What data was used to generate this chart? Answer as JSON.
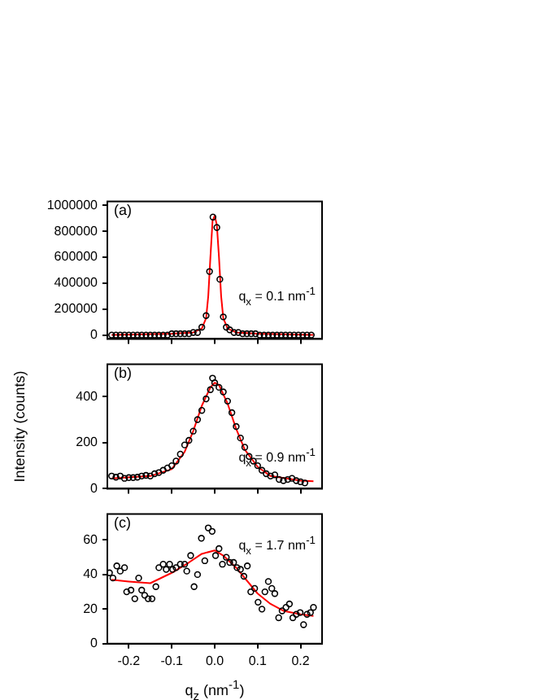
{
  "chart_data": [
    {
      "type": "scatter",
      "annotations": [
        "(a)",
        "q$_{x}$ = 0.1 nm$^{-1}$"
      ],
      "xlim": [
        -0.25,
        0.25
      ],
      "xticks": [
        -0.2,
        -0.1,
        0,
        0.1,
        0.2
      ],
      "ylim": [
        -30000,
        1030000
      ],
      "yticks": [
        0,
        200000,
        400000,
        600000,
        800000,
        1000000
      ],
      "tick_labels": "y",
      "series": [
        {
          "type": "scatter",
          "marker": "circle",
          "color": "#000000",
          "x": [
            -0.24,
            -0.23,
            -0.22,
            -0.21,
            -0.2,
            -0.19,
            -0.18,
            -0.17,
            -0.16,
            -0.15,
            -0.14,
            -0.13,
            -0.12,
            -0.11,
            -0.1,
            -0.09,
            -0.08,
            -0.07,
            -0.06,
            -0.05,
            -0.04,
            -0.03,
            -0.02,
            -0.012,
            -0.004,
            0.005,
            0.012,
            0.02,
            0.027,
            0.035,
            0.045,
            0.055,
            0.065,
            0.075,
            0.085,
            0.095,
            0.105,
            0.115,
            0.125,
            0.135,
            0.145,
            0.155,
            0.165,
            0.175,
            0.185,
            0.195,
            0.205,
            0.215,
            0.225
          ],
          "values": [
            0,
            0,
            0,
            0,
            0,
            0,
            0,
            0,
            0,
            0,
            0,
            0,
            0,
            0,
            10000,
            10000,
            10000,
            10000,
            10000,
            20000,
            20000,
            60000,
            150000,
            490000,
            910000,
            830000,
            430000,
            140000,
            60000,
            40000,
            20000,
            20000,
            10000,
            10000,
            10000,
            10000,
            0,
            0,
            0,
            0,
            0,
            0,
            0,
            0,
            0,
            0,
            0,
            0,
            0
          ]
        },
        {
          "type": "line",
          "marker": "none",
          "color": "#ff0000",
          "x": [
            -0.24,
            -0.1,
            -0.05,
            -0.03,
            -0.02,
            -0.015,
            -0.01,
            -0.005,
            0,
            0.005,
            0.01,
            0.015,
            0.02,
            0.03,
            0.05,
            0.1,
            0.23
          ],
          "values": [
            0,
            10000,
            20000,
            50000,
            130000,
            300000,
            600000,
            880000,
            920000,
            850000,
            600000,
            300000,
            130000,
            50000,
            20000,
            10000,
            0
          ]
        }
      ]
    },
    {
      "type": "scatter",
      "annotations": [
        "(b)",
        "q$_{x}$ = 0.9 nm$^{-1}$"
      ],
      "ylabel": "Intensity (counts)",
      "xlim": [
        -0.25,
        0.25
      ],
      "xticks": [
        -0.2,
        -0.1,
        0,
        0.1,
        0.2
      ],
      "ylim": [
        0,
        540
      ],
      "yticks": [
        0,
        200,
        400
      ],
      "tick_labels": "y",
      "series": [
        {
          "type": "scatter",
          "marker": "circle",
          "color": "#000000",
          "x": [
            -0.24,
            -0.23,
            -0.22,
            -0.21,
            -0.2,
            -0.19,
            -0.18,
            -0.17,
            -0.16,
            -0.15,
            -0.14,
            -0.13,
            -0.12,
            -0.11,
            -0.1,
            -0.09,
            -0.08,
            -0.07,
            -0.06,
            -0.05,
            -0.04,
            -0.03,
            -0.02,
            -0.01,
            -0.005,
            0,
            0.01,
            0.02,
            0.03,
            0.04,
            0.05,
            0.06,
            0.07,
            0.08,
            0.09,
            0.1,
            0.11,
            0.12,
            0.13,
            0.14,
            0.15,
            0.16,
            0.17,
            0.18,
            0.19,
            0.2,
            0.21
          ],
          "values": [
            55,
            50,
            55,
            45,
            48,
            48,
            50,
            55,
            58,
            55,
            65,
            70,
            80,
            90,
            100,
            120,
            150,
            190,
            210,
            250,
            300,
            340,
            390,
            430,
            480,
            460,
            440,
            420,
            380,
            330,
            270,
            220,
            180,
            140,
            120,
            100,
            80,
            65,
            55,
            60,
            40,
            35,
            40,
            45,
            35,
            30,
            25
          ]
        },
        {
          "type": "line",
          "marker": "none",
          "color": "#ff0000",
          "x": [
            -0.24,
            -0.15,
            -0.1,
            -0.07,
            -0.05,
            -0.03,
            -0.01,
            0,
            0.01,
            0.03,
            0.05,
            0.07,
            0.1,
            0.13,
            0.2,
            0.23
          ],
          "values": [
            45,
            55,
            85,
            160,
            250,
            360,
            440,
            460,
            450,
            370,
            260,
            170,
            95,
            55,
            35,
            32
          ]
        }
      ]
    },
    {
      "type": "scatter",
      "annotations": [
        "(c)",
        "q$_{x}$ = 1.7 nm$^{-1}$"
      ],
      "xlabel": "q$_{z}$ (nm$^{-1}$)",
      "xlim": [
        -0.25,
        0.25
      ],
      "xticks": [
        -0.2,
        -0.1,
        {
          "value": 0,
          "label": "0.0"
        },
        0.1,
        0.2
      ],
      "ylim": [
        0,
        75
      ],
      "yticks": [
        0,
        20,
        40,
        60
      ],
      "series": [
        {
          "type": "scatter",
          "marker": "circle",
          "color": "#000000",
          "x": [
            -0.245,
            -0.237,
            -0.228,
            -0.22,
            -0.21,
            -0.205,
            -0.195,
            -0.186,
            -0.177,
            -0.17,
            -0.163,
            -0.155,
            -0.146,
            -0.137,
            -0.13,
            -0.12,
            -0.113,
            -0.105,
            -0.098,
            -0.09,
            -0.08,
            -0.07,
            -0.065,
            -0.056,
            -0.048,
            -0.04,
            -0.031,
            -0.023,
            -0.015,
            -0.006,
            0.002,
            0.01,
            0.018,
            0.027,
            0.035,
            0.044,
            0.052,
            0.06,
            0.068,
            0.076,
            0.084,
            0.093,
            0.101,
            0.11,
            0.117,
            0.125,
            0.133,
            0.14,
            0.149,
            0.157,
            0.166,
            0.174,
            0.182,
            0.19,
            0.199,
            0.207,
            0.215,
            0.223,
            0.23
          ],
          "values": [
            41,
            38,
            45,
            42,
            44,
            30,
            31,
            26,
            38,
            31,
            28,
            26,
            26,
            33,
            44,
            46,
            43,
            46,
            43,
            44,
            46,
            46,
            42,
            51,
            33,
            40,
            61,
            48,
            67,
            65,
            51,
            55,
            46,
            50,
            47,
            47,
            44,
            43,
            39,
            45,
            30,
            32,
            24,
            20,
            30,
            36,
            32,
            29,
            15,
            19,
            21,
            23,
            15,
            17,
            18,
            11,
            17,
            18,
            21
          ]
        },
        {
          "type": "line",
          "marker": "none",
          "color": "#ff0000",
          "x": [
            -0.24,
            -0.2,
            -0.15,
            -0.1,
            -0.06,
            -0.03,
            0,
            0.02,
            0.05,
            0.08,
            0.1,
            0.13,
            0.16,
            0.2,
            0.23
          ],
          "values": [
            37,
            36,
            35,
            41,
            47,
            52,
            54,
            51,
            44,
            35,
            29,
            23,
            19,
            17,
            16
          ]
        }
      ]
    }
  ]
}
